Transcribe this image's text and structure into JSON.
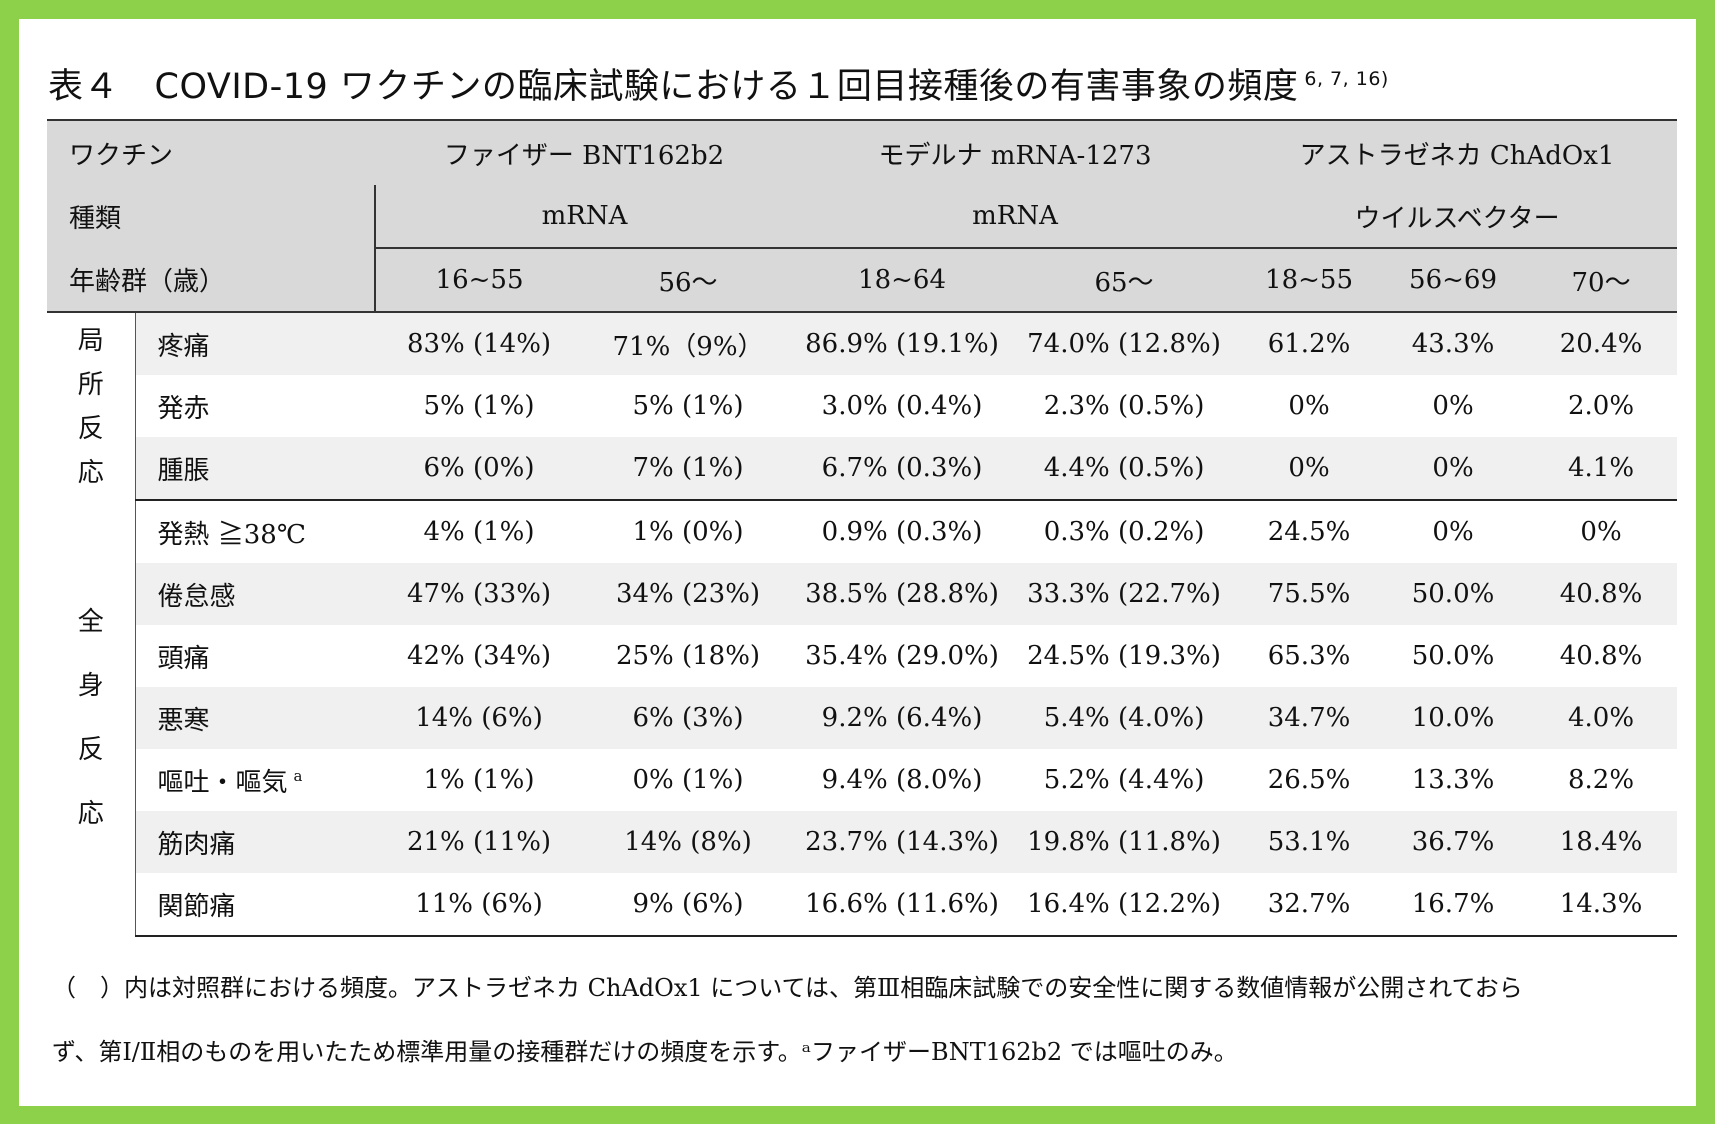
{
  "title": {
    "text": "表４　COVID-19 ワクチンの臨床試験における１回目接種後の有害事象の頻度",
    "ref": "6, 7, 16)"
  },
  "header": {
    "vaccine_label": "ワクチン",
    "pfizer": "ファイザー  BNT162b2",
    "moderna": "モデルナ  mRNA-1273",
    "az": "アストラゼネカ  ChAdOx1",
    "type_label": "種類",
    "type_pfizer": "mRNA",
    "type_moderna": "mRNA",
    "type_az": "ウイルスベクター",
    "age_label": "年齢群（歳）",
    "ages": [
      "16~55",
      "56～",
      "18~64",
      "65～",
      "18~55",
      "56~69",
      "70～"
    ]
  },
  "groups": {
    "local": [
      "局",
      "所",
      "反",
      "応"
    ],
    "systemic": [
      "全",
      "身",
      "反",
      "応"
    ]
  },
  "rows": [
    {
      "label": "疼痛",
      "values": [
        "83% (14%)",
        "71%（9%）",
        "86.9% (19.1%)",
        "74.0% (12.8%)",
        "61.2%",
        "43.3%",
        "20.4%"
      ]
    },
    {
      "label": "発赤",
      "values": [
        "5% (1%)",
        "5% (1%)",
        "3.0% (0.4%)",
        "2.3% (0.5%)",
        "0%",
        "0%",
        "2.0%"
      ]
    },
    {
      "label": "腫脹",
      "values": [
        "6% (0%)",
        "7% (1%)",
        "6.7% (0.3%)",
        "4.4% (0.5%)",
        "0%",
        "0%",
        "4.1%"
      ]
    },
    {
      "label": "発熱  ≧38℃",
      "values": [
        "4% (1%)",
        "1% (0%)",
        "0.9% (0.3%)",
        "0.3% (0.2%)",
        "24.5%",
        "0%",
        "0%"
      ]
    },
    {
      "label": "倦怠感",
      "values": [
        "47% (33%)",
        "34% (23%)",
        "38.5% (28.8%)",
        "33.3% (22.7%)",
        "75.5%",
        "50.0%",
        "40.8%"
      ]
    },
    {
      "label": "頭痛",
      "values": [
        "42% (34%)",
        "25% (18%)",
        "35.4% (29.0%)",
        "24.5% (19.3%)",
        "65.3%",
        "50.0%",
        "40.8%"
      ]
    },
    {
      "label": "悪寒",
      "values": [
        "14% (6%)",
        "6% (3%)",
        "9.2% (6.4%)",
        "5.4% (4.0%)",
        "34.7%",
        "10.0%",
        "4.0%"
      ]
    },
    {
      "label": "嘔吐・嘔気",
      "label_sup": "a",
      "values": [
        "1% (1%)",
        "0% (1%)",
        "9.4% (8.0%)",
        "5.2% (4.4%)",
        "26.5%",
        "13.3%",
        "8.2%"
      ]
    },
    {
      "label": "筋肉痛",
      "values": [
        "21% (11%)",
        "14% (8%)",
        "23.7% (14.3%)",
        "19.8% (11.8%)",
        "53.1%",
        "36.7%",
        "18.4%"
      ]
    },
    {
      "label": "関節痛",
      "values": [
        "11% (6%)",
        "9% (6%)",
        "16.6% (11.6%)",
        "16.4% (12.2%)",
        "32.7%",
        "16.7%",
        "14.3%"
      ]
    }
  ],
  "notes": {
    "line1": "（　）内は対照群における頻度。アストラゼネカ ChAdOx1 については、第Ⅲ相臨床試験での安全性に関する数値情報が公開されておら",
    "line2": "ず、第Ⅰ/Ⅱ相のものを用いたため標準用量の接種群だけの頻度を示す。ᵃファイザーBNT162b2 では嘔吐のみ。"
  }
}
